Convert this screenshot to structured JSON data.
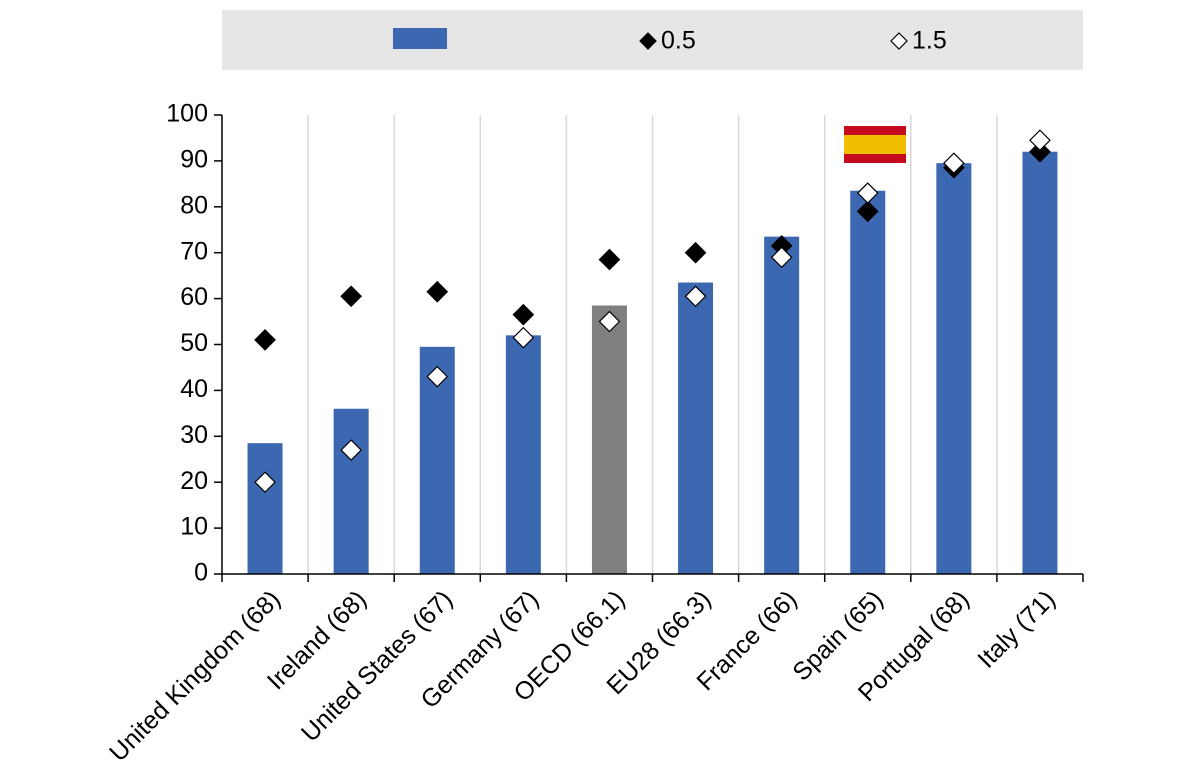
{
  "chart_data": {
    "type": "bar",
    "categories": [
      "United Kingdom (68)",
      "Ireland (68)",
      "United States (67)",
      "Germany (67)",
      "OECD (66.1)",
      "EU28 (66.3)",
      "France (66)",
      "Spain (65)",
      "Portugal (68)",
      "Italy (71)"
    ],
    "series": [
      {
        "kind": "bar",
        "color": "#3c68b1",
        "colors": [
          "#3c68b1",
          "#3c68b1",
          "#3c68b1",
          "#3c68b1",
          "#7f7f7f",
          "#3c68b1",
          "#3c68b1",
          "#3c68b1",
          "#3c68b1",
          "#3c68b1"
        ],
        "values": [
          28.5,
          36,
          49.5,
          52,
          58.5,
          63.5,
          73.5,
          83.5,
          89.5,
          92
        ]
      },
      {
        "kind": "marker",
        "name": "0.5",
        "color": "#000000",
        "marker": "diamond",
        "values": [
          51,
          60.5,
          61.5,
          56.5,
          68.5,
          70,
          71.5,
          79,
          88.5,
          92
        ]
      },
      {
        "kind": "marker",
        "name": "1.5",
        "color": "#ffffff",
        "marker": "diamond",
        "values": [
          20,
          27,
          43,
          51.5,
          55,
          60.5,
          69,
          83,
          89.5,
          94.5
        ]
      }
    ],
    "ylim": [
      0,
      100
    ],
    "yticks": [
      0,
      10,
      20,
      30,
      40,
      50,
      60,
      70,
      80,
      90,
      100
    ],
    "grid": "vertical",
    "legend": "top"
  }
}
